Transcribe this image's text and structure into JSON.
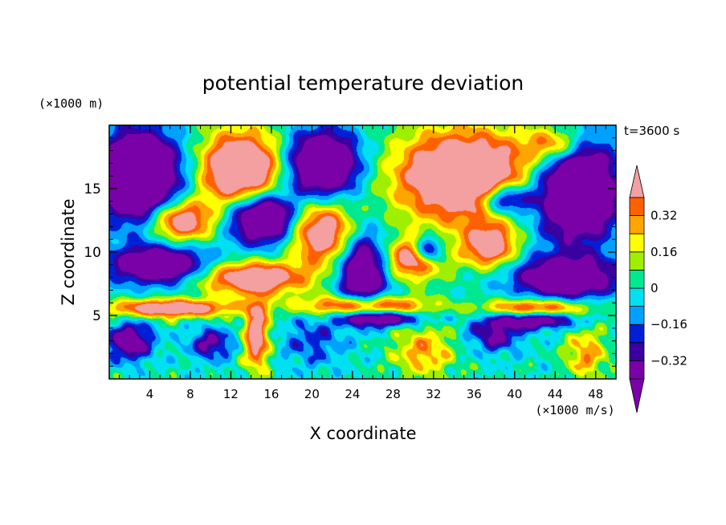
{
  "chart_data": {
    "type": "heatmap",
    "title": "potential temperature deviation",
    "xlabel": "X coordinate",
    "ylabel": "Z coordinate",
    "x_unit": "(×1000 m/s)",
    "y_unit": "(×1000 m)",
    "time_label": "t=3600 s",
    "xlim": [
      0,
      50
    ],
    "ylim": [
      0,
      20
    ],
    "x_ticks": [
      4,
      8,
      12,
      16,
      20,
      24,
      28,
      32,
      36,
      40,
      44,
      48
    ],
    "y_ticks": [
      5,
      10,
      15
    ],
    "colorbar": {
      "levels": [
        -0.4,
        -0.32,
        -0.24,
        -0.16,
        -0.08,
        0,
        0.08,
        0.16,
        0.24,
        0.32,
        0.4
      ],
      "tick_labels": [
        "0.32",
        "0.16",
        "0",
        "−0.16",
        "−0.32"
      ],
      "tick_values": [
        0.32,
        0.16,
        0,
        -0.16,
        -0.32
      ],
      "colors": [
        "#7a00a8",
        "#3a00a0",
        "#0020d8",
        "#00a0ff",
        "#00e0f0",
        "#00e890",
        "#a0ee00",
        "#ffff00",
        "#ffa500",
        "#ff6000",
        "#ff2020",
        "#f4a0a0"
      ],
      "extend": "both"
    },
    "features": [
      {
        "kind": "warm",
        "x": 13,
        "z": 16.5,
        "sx": 4.0,
        "sz": 3.0,
        "amp": 0.75
      },
      {
        "kind": "warm",
        "x": 35,
        "z": 16.0,
        "sx": 6.5,
        "sz": 3.5,
        "amp": 0.8
      },
      {
        "kind": "warm",
        "x": 44,
        "z": 18.5,
        "sx": 3.0,
        "sz": 1.5,
        "amp": 0.45
      },
      {
        "kind": "warm",
        "x": 7,
        "z": 12.5,
        "sx": 3.0,
        "sz": 1.6,
        "amp": 0.6
      },
      {
        "kind": "warm",
        "x": 21,
        "z": 11.5,
        "sx": 3.0,
        "sz": 2.4,
        "amp": 0.6
      },
      {
        "kind": "warm",
        "x": 30,
        "z": 9.5,
        "sx": 3.0,
        "sz": 1.6,
        "amp": 0.55
      },
      {
        "kind": "warm",
        "x": 37.5,
        "z": 10.5,
        "sx": 2.5,
        "sz": 1.6,
        "amp": 0.55
      },
      {
        "kind": "warm",
        "x": 14,
        "z": 8.0,
        "sx": 5.5,
        "sz": 1.3,
        "amp": 0.6
      },
      {
        "kind": "warm",
        "x": 6,
        "z": 5.6,
        "sx": 6.0,
        "sz": 0.7,
        "amp": 0.6
      },
      {
        "kind": "warm",
        "x": 25,
        "z": 5.8,
        "sx": 6.0,
        "sz": 0.8,
        "amp": 0.55
      },
      {
        "kind": "warm",
        "x": 42,
        "z": 5.6,
        "sx": 5.0,
        "sz": 0.7,
        "amp": 0.5
      },
      {
        "kind": "warm",
        "x": 14.5,
        "z": 3.5,
        "sx": 1.2,
        "sz": 2.8,
        "amp": 0.55
      },
      {
        "kind": "warm",
        "x": 31,
        "z": 2.2,
        "sx": 3.0,
        "sz": 2.0,
        "amp": 0.3
      },
      {
        "kind": "warm",
        "x": 47,
        "z": 2.0,
        "sx": 2.0,
        "sz": 2.0,
        "amp": 0.3
      },
      {
        "kind": "cold",
        "x": 3,
        "z": 16.0,
        "sx": 4.0,
        "sz": 3.5,
        "amp": 0.8
      },
      {
        "kind": "cold",
        "x": 21,
        "z": 17.0,
        "sx": 3.5,
        "sz": 2.5,
        "amp": 0.75
      },
      {
        "kind": "cold",
        "x": 15,
        "z": 12.8,
        "sx": 3.2,
        "sz": 2.0,
        "amp": 0.75
      },
      {
        "kind": "cold",
        "x": 46,
        "z": 15.0,
        "sx": 4.0,
        "sz": 4.0,
        "amp": 0.8
      },
      {
        "kind": "cold",
        "x": 39,
        "z": 14.2,
        "sx": 2.5,
        "sz": 1.2,
        "amp": 0.6
      },
      {
        "kind": "cold",
        "x": 31.5,
        "z": 10.2,
        "sx": 1.4,
        "sz": 1.1,
        "amp": 0.6
      },
      {
        "kind": "cold",
        "x": 5,
        "z": 9.0,
        "sx": 5.0,
        "sz": 1.5,
        "amp": 0.6
      },
      {
        "kind": "cold",
        "x": 25,
        "z": 8.5,
        "sx": 2.5,
        "sz": 3.0,
        "amp": 0.6
      },
      {
        "kind": "cold",
        "x": 45,
        "z": 8.0,
        "sx": 5.0,
        "sz": 1.6,
        "amp": 0.6
      },
      {
        "kind": "cold",
        "x": 27,
        "z": 4.8,
        "sx": 4.0,
        "sz": 0.6,
        "amp": 0.5
      },
      {
        "kind": "cold",
        "x": 42,
        "z": 4.7,
        "sx": 4.0,
        "sz": 0.7,
        "amp": 0.5
      },
      {
        "kind": "cold",
        "x": 2,
        "z": 3.0,
        "sx": 2.2,
        "sz": 1.5,
        "amp": 0.45
      },
      {
        "kind": "cold",
        "x": 10,
        "z": 2.8,
        "sx": 2.0,
        "sz": 1.2,
        "amp": 0.35
      },
      {
        "kind": "cold",
        "x": 38,
        "z": 3.5,
        "sx": 2.5,
        "sz": 1.3,
        "amp": 0.35
      },
      {
        "kind": "cold",
        "x": 20,
        "z": 3.0,
        "sx": 3.0,
        "sz": 2.0,
        "amp": 0.2
      }
    ]
  }
}
